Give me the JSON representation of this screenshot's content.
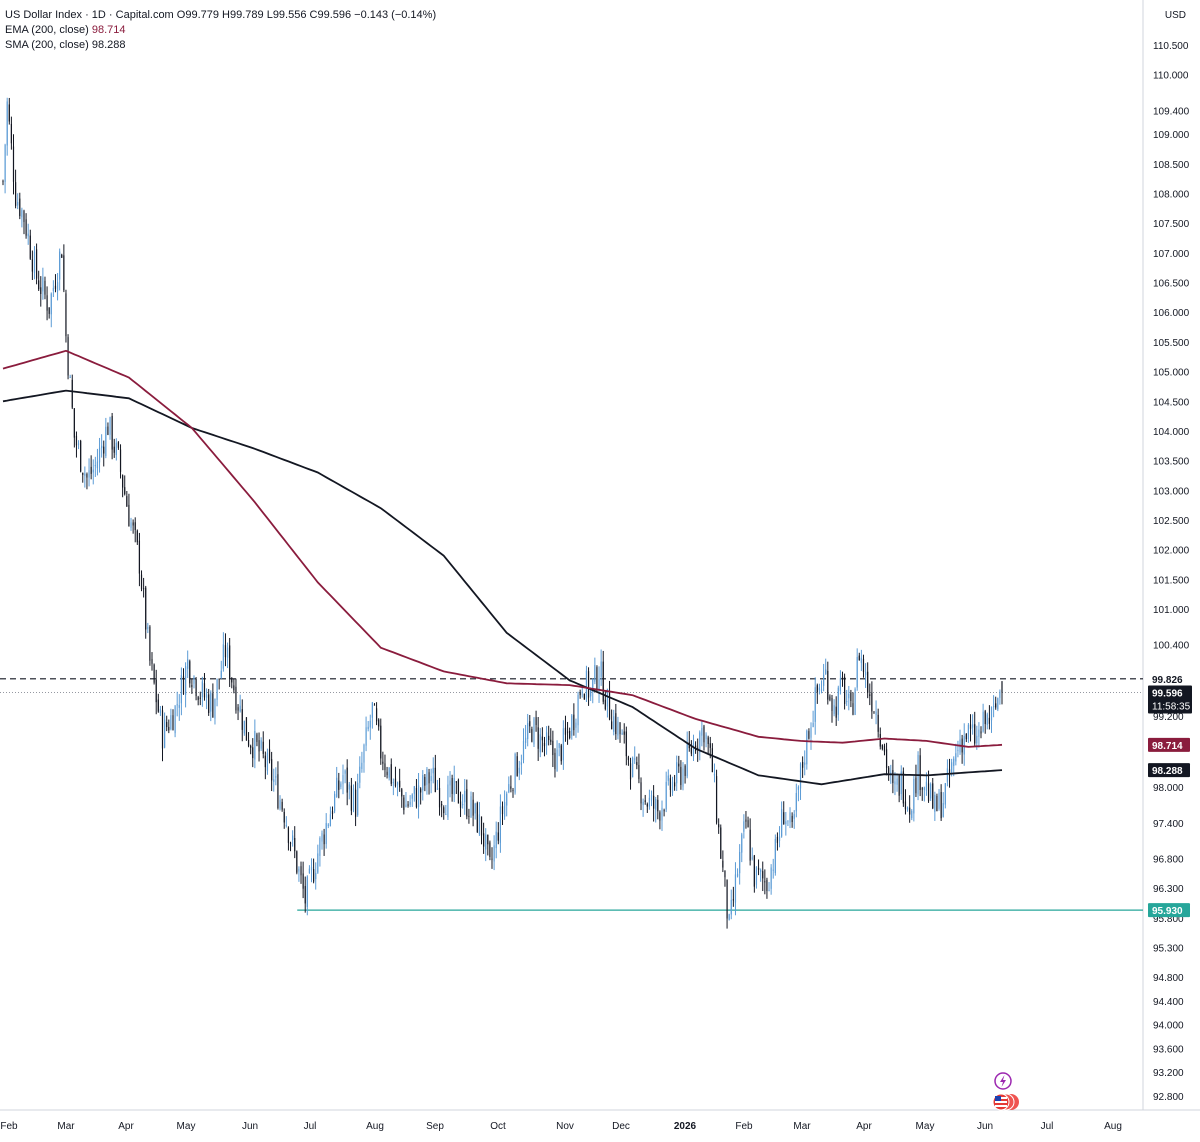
{
  "header": {
    "instrument": "US Dollar Index · 1D · Capital.com",
    "ohlc": "O99.779 H99.789 L99.556 C99.596 −0.143 (−0.14%)",
    "ema_label": "EMA (200, close)",
    "ema_value": "98.714",
    "sma_label": "SMA (200, close)",
    "sma_value": "98.288",
    "currency": "USD"
  },
  "colors": {
    "up": "#5b9bd5",
    "down": "#131722",
    "ema": "#8a1c3d",
    "sma": "#131722",
    "support": "#26a69a",
    "grid": "#e6e8ec"
  },
  "chart_data": {
    "type": "candlestick",
    "y_range": [
      92.5,
      110.9
    ],
    "y_ticks": [
      "110.500",
      "110.000",
      "109.400",
      "109.000",
      "108.500",
      "108.000",
      "107.500",
      "107.000",
      "106.500",
      "106.000",
      "105.500",
      "105.000",
      "104.500",
      "104.000",
      "103.500",
      "103.000",
      "102.500",
      "102.000",
      "101.500",
      "101.000",
      "100.400",
      "99.200",
      "98.700",
      "98.000",
      "97.400",
      "96.800",
      "96.300",
      "95.800",
      "95.300",
      "94.800",
      "94.400",
      "94.000",
      "93.600",
      "93.200",
      "92.800"
    ],
    "x_labels": [
      "Feb",
      "Mar",
      "Apr",
      "May",
      "Jun",
      "Jul",
      "Aug",
      "Sep",
      "Oct",
      "Nov",
      "Dec",
      "2026",
      "Feb",
      "Mar",
      "Apr",
      "May",
      "Jun",
      "Jul",
      "Aug"
    ],
    "x_bold": [
      "2026"
    ],
    "price_keypoints": [
      [
        0,
        108.2
      ],
      [
        2,
        109.5
      ],
      [
        6,
        108.0
      ],
      [
        10,
        107.6
      ],
      [
        16,
        106.6
      ],
      [
        22,
        106.1
      ],
      [
        28,
        107.1
      ],
      [
        30,
        105.6
      ],
      [
        34,
        103.9
      ],
      [
        40,
        103.2
      ],
      [
        44,
        103.4
      ],
      [
        50,
        104.1
      ],
      [
        55,
        103.5
      ],
      [
        60,
        102.6
      ],
      [
        65,
        101.8
      ],
      [
        70,
        100.1
      ],
      [
        76,
        98.9
      ],
      [
        82,
        99.3
      ],
      [
        88,
        100.1
      ],
      [
        94,
        99.6
      ],
      [
        100,
        99.4
      ],
      [
        106,
        100.3
      ],
      [
        110,
        99.7
      ],
      [
        116,
        98.9
      ],
      [
        122,
        98.6
      ],
      [
        128,
        98.2
      ],
      [
        134,
        97.6
      ],
      [
        140,
        96.7
      ],
      [
        144,
        96.1
      ],
      [
        150,
        96.9
      ],
      [
        156,
        97.6
      ],
      [
        162,
        98.2
      ],
      [
        168,
        97.7
      ],
      [
        172,
        98.6
      ],
      [
        176,
        99.3
      ],
      [
        180,
        98.6
      ],
      [
        186,
        98.1
      ],
      [
        192,
        97.7
      ],
      [
        198,
        97.9
      ],
      [
        204,
        98.2
      ],
      [
        210,
        97.8
      ],
      [
        216,
        97.9
      ],
      [
        222,
        97.7
      ],
      [
        228,
        97.3
      ],
      [
        232,
        96.6
      ],
      [
        236,
        97.3
      ],
      [
        240,
        97.9
      ],
      [
        246,
        98.5
      ],
      [
        252,
        99.0
      ],
      [
        258,
        98.7
      ],
      [
        264,
        98.5
      ],
      [
        268,
        98.8
      ],
      [
        272,
        99.2
      ],
      [
        276,
        99.8
      ],
      [
        280,
        99.6
      ],
      [
        284,
        100.0
      ],
      [
        288,
        99.4
      ],
      [
        294,
        98.9
      ],
      [
        300,
        98.3
      ],
      [
        306,
        97.8
      ],
      [
        312,
        97.6
      ],
      [
        318,
        98.0
      ],
      [
        324,
        98.3
      ],
      [
        330,
        98.8
      ],
      [
        334,
        99.0
      ],
      [
        338,
        98.3
      ],
      [
        342,
        96.9
      ],
      [
        346,
        95.6
      ],
      [
        350,
        96.6
      ],
      [
        354,
        97.4
      ],
      [
        358,
        96.5
      ],
      [
        364,
        96.4
      ],
      [
        368,
        96.9
      ],
      [
        372,
        97.6
      ],
      [
        376,
        97.2
      ],
      [
        380,
        98.2
      ],
      [
        384,
        99.0
      ],
      [
        388,
        99.6
      ],
      [
        392,
        99.9
      ],
      [
        396,
        99.3
      ],
      [
        400,
        99.7
      ],
      [
        404,
        99.2
      ],
      [
        408,
        100.3
      ],
      [
        412,
        99.7
      ],
      [
        416,
        99.3
      ],
      [
        420,
        98.6
      ],
      [
        424,
        97.9
      ],
      [
        428,
        98.1
      ],
      [
        432,
        97.7
      ],
      [
        436,
        98.3
      ],
      [
        440,
        98.0
      ],
      [
        444,
        97.6
      ],
      [
        448,
        97.8
      ],
      [
        452,
        98.3
      ],
      [
        456,
        98.8
      ],
      [
        460,
        98.9
      ],
      [
        464,
        98.8
      ],
      [
        468,
        99.1
      ],
      [
        472,
        99.2
      ],
      [
        476,
        99.79
      ]
    ],
    "ema_keypoints": [
      [
        0,
        105.05
      ],
      [
        30,
        105.35
      ],
      [
        60,
        104.9
      ],
      [
        90,
        104.05
      ],
      [
        120,
        102.8
      ],
      [
        150,
        101.45
      ],
      [
        180,
        100.35
      ],
      [
        210,
        99.95
      ],
      [
        240,
        99.75
      ],
      [
        270,
        99.72
      ],
      [
        300,
        99.55
      ],
      [
        330,
        99.15
      ],
      [
        360,
        98.85
      ],
      [
        380,
        98.78
      ],
      [
        400,
        98.75
      ],
      [
        420,
        98.82
      ],
      [
        440,
        98.78
      ],
      [
        460,
        98.68
      ],
      [
        476,
        98.714
      ]
    ],
    "sma_keypoints": [
      [
        0,
        104.5
      ],
      [
        30,
        104.68
      ],
      [
        60,
        104.55
      ],
      [
        90,
        104.05
      ],
      [
        120,
        103.7
      ],
      [
        150,
        103.3
      ],
      [
        180,
        102.7
      ],
      [
        210,
        101.9
      ],
      [
        240,
        100.6
      ],
      [
        270,
        99.8
      ],
      [
        300,
        99.35
      ],
      [
        330,
        98.65
      ],
      [
        360,
        98.2
      ],
      [
        390,
        98.05
      ],
      [
        420,
        98.22
      ],
      [
        440,
        98.2
      ],
      [
        460,
        98.25
      ],
      [
        476,
        98.288
      ]
    ],
    "dashed_line": {
      "label": "99.826",
      "value": 99.826
    },
    "last_price": {
      "label": "99.596",
      "countdown": "11:58:35",
      "value": 99.596
    },
    "ema_badge": {
      "label": "98.714",
      "value": 98.714
    },
    "sma_badge": {
      "label": "98.288",
      "value": 98.288
    },
    "support": {
      "label": "95.930",
      "value": 95.93,
      "from_index": 144,
      "to_index": 476
    }
  }
}
